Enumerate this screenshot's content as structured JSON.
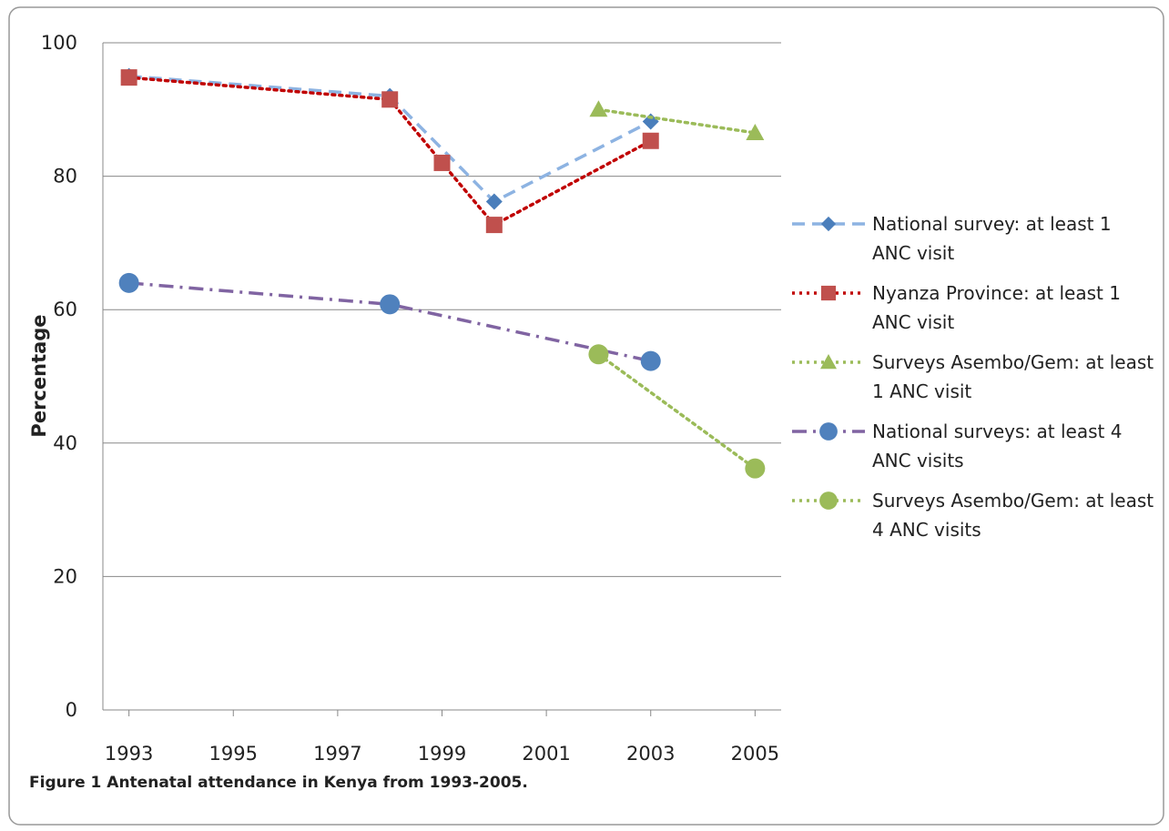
{
  "chart_data": {
    "type": "line",
    "ylabel": "Percentage",
    "xlim": [
      1992.5,
      2005.5
    ],
    "xticks": [
      1993,
      1995,
      1997,
      1999,
      2001,
      2003,
      2005
    ],
    "ylim": [
      0,
      100
    ],
    "yticks": [
      0,
      20,
      40,
      60,
      80,
      100
    ],
    "grid": true,
    "legend": "right",
    "series": [
      {
        "name": "National survey: at least 1 ANC visit",
        "color": "#8db3e2",
        "marker_color": "#4a7ebb",
        "marker": "diamond",
        "line_style": "dash",
        "x": [
          1993,
          1998,
          2000,
          2003
        ],
        "values": [
          95,
          92,
          76.2,
          88.2
        ]
      },
      {
        "name": "Nyanza Province: at least 1 ANC visit",
        "color": "#c00000",
        "marker_color": "#c0504d",
        "marker": "square",
        "line_style": "dot",
        "x": [
          1993,
          1998,
          1999,
          2000,
          2003
        ],
        "values": [
          94.8,
          91.5,
          82,
          72.7,
          85.3
        ]
      },
      {
        "name": "Surveys Asembo/Gem: at least 1 ANC visit",
        "color": "#9bbb59",
        "marker_color": "#9bbb59",
        "marker": "triangle",
        "line_style": "dot",
        "x": [
          2002,
          2005
        ],
        "values": [
          90,
          86.5
        ]
      },
      {
        "name": "National surveys: at least 4 ANC visits",
        "color": "#8064a2",
        "marker_color": "#4f81bd",
        "marker": "circle",
        "line_style": "dashdot",
        "x": [
          1993,
          1998,
          2003
        ],
        "values": [
          64,
          60.8,
          52.3
        ]
      },
      {
        "name": "Surveys Asembo/Gem: at least 4 ANC visits",
        "color": "#9bbb59",
        "marker_color": "#9bbb59",
        "marker": "circle",
        "line_style": "dot",
        "x": [
          2002,
          2005
        ],
        "values": [
          53.3,
          36.2
        ]
      }
    ]
  },
  "caption": {
    "label": "Figure 1",
    "text": "Antenatal attendance in Kenya from 1993-2005."
  }
}
